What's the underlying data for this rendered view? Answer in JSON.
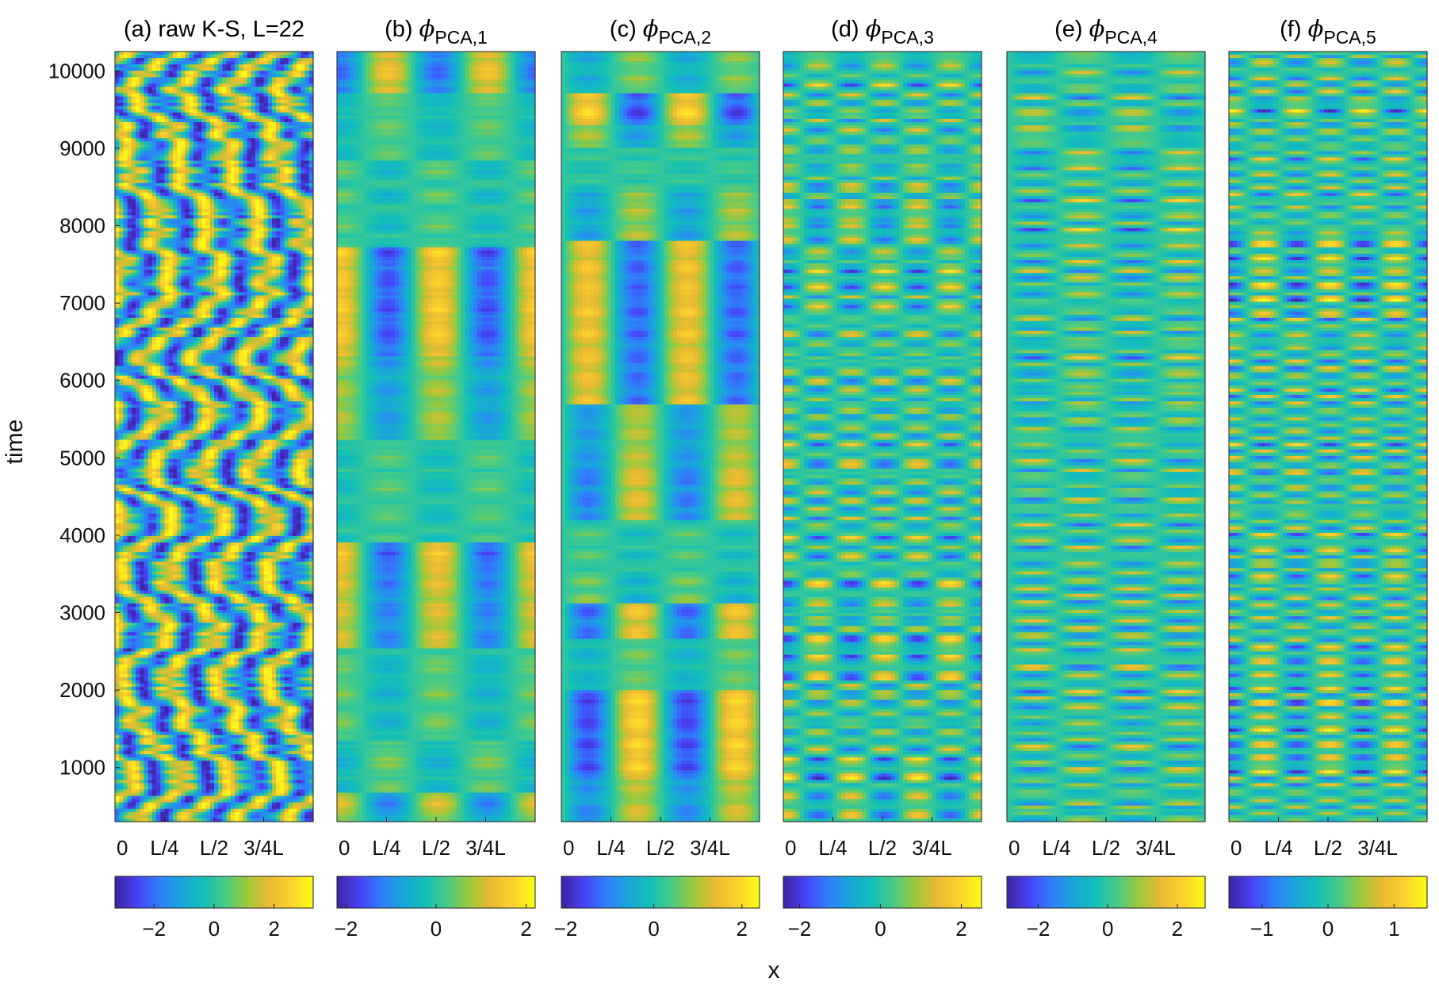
{
  "chart_data": [
    {
      "type": "heatmap",
      "id": "a",
      "title": "(a) raw K-S, L=22",
      "pattern": "raw",
      "xticks": [
        "0",
        "L/4",
        "L/2",
        "3/4L"
      ],
      "colorbar_ticks": [
        -2,
        0,
        2
      ],
      "colorbar_range": [
        -3.3,
        3.3
      ]
    },
    {
      "type": "heatmap",
      "id": "b",
      "title_prefix": "(b) ",
      "title_symbol": "ϕ",
      "title_sub": "PCA,1",
      "pattern": "pca",
      "mode_index": 1,
      "xticks": [
        "0",
        "L/4",
        "L/2",
        "3/4L"
      ],
      "colorbar_ticks": [
        -2,
        0,
        2
      ],
      "colorbar_range": [
        -2.2,
        2.2
      ]
    },
    {
      "type": "heatmap",
      "id": "c",
      "title_prefix": "(c) ",
      "title_symbol": "ϕ",
      "title_sub": "PCA,2",
      "pattern": "pca",
      "mode_index": 2,
      "xticks": [
        "0",
        "L/4",
        "L/2",
        "3/4L"
      ],
      "colorbar_ticks": [
        -2,
        0,
        2
      ],
      "colorbar_range": [
        -2.1,
        2.4
      ]
    },
    {
      "type": "heatmap",
      "id": "d",
      "title_prefix": "(d) ",
      "title_symbol": "ϕ",
      "title_sub": "PCA,3",
      "pattern": "pca",
      "mode_index": 3,
      "xticks": [
        "0",
        "L/4",
        "L/2",
        "3/4L"
      ],
      "colorbar_ticks": [
        -2,
        0,
        2
      ],
      "colorbar_range": [
        -2.4,
        2.5
      ]
    },
    {
      "type": "heatmap",
      "id": "e",
      "title_prefix": "(e) ",
      "title_symbol": "ϕ",
      "title_sub": "PCA,4",
      "pattern": "pca",
      "mode_index": 4,
      "xticks": [
        "0",
        "L/4",
        "L/2",
        "3/4L"
      ],
      "colorbar_ticks": [
        -2,
        0,
        2
      ],
      "colorbar_range": [
        -2.9,
        2.8
      ]
    },
    {
      "type": "heatmap",
      "id": "f",
      "title_prefix": "(f) ",
      "title_symbol": "ϕ",
      "title_sub": "PCA,5",
      "pattern": "pca",
      "mode_index": 5,
      "xticks": [
        "0",
        "L/4",
        "L/2",
        "3/4L"
      ],
      "colorbar_ticks": [
        -1,
        0,
        1
      ],
      "colorbar_range": [
        -1.5,
        1.5
      ]
    }
  ],
  "shared": {
    "ylabel": "time",
    "xlabel": "x",
    "ylim": [
      300,
      10250
    ],
    "yticks": [
      1000,
      2000,
      3000,
      4000,
      5000,
      6000,
      7000,
      8000,
      9000,
      10000
    ],
    "colormap": "parula",
    "colormap_stops": [
      "#3e26a8",
      "#4743f8",
      "#2f7ff9",
      "#1aa5db",
      "#13beb8",
      "#48cb86",
      "#9bc93c",
      "#e8ba31",
      "#fcd02e",
      "#f9fb15"
    ]
  }
}
